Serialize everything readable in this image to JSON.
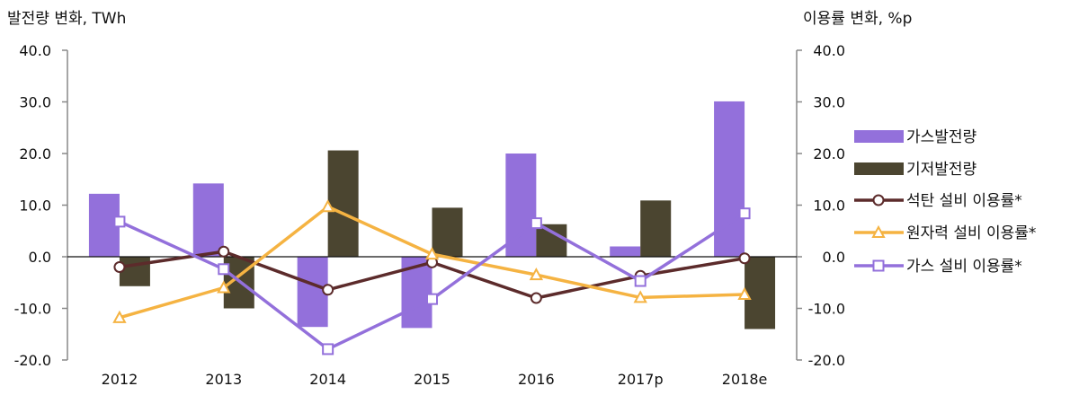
{
  "chart_data": {
    "type": "bar",
    "categories": [
      "2012",
      "2013",
      "2014",
      "2015",
      "2016",
      "2017p",
      "2018e"
    ],
    "ylabel_left": "발전량 변화, TWh",
    "ylabel_right": "이용률 변화, %p",
    "ylim": [
      -20,
      40
    ],
    "y2lim": [
      -20,
      40
    ],
    "yticks": [
      "40.0",
      "30.0",
      "20.0",
      "10.0",
      "0.0",
      "-10.0",
      "-20.0"
    ],
    "y2ticks": [
      "40.0",
      "30.0",
      "20.0",
      "10.0",
      "0.0",
      "-10.0",
      "-20.0"
    ],
    "grid": false,
    "legend_position": "right",
    "series": [
      {
        "name": "가스발전량",
        "kind": "bar",
        "axis": "left",
        "color": "#9370db",
        "values": [
          12.2,
          14.2,
          -13.6,
          -13.8,
          20.0,
          2.0,
          30.1
        ]
      },
      {
        "name": "기저발전량",
        "kind": "bar",
        "axis": "left",
        "color": "#4b4530",
        "values": [
          -5.7,
          -10.0,
          20.6,
          9.5,
          6.3,
          10.9,
          -14.0
        ]
      },
      {
        "name": "석탄 설비 이용률*",
        "kind": "line",
        "axis": "right",
        "color": "#5c2b2b",
        "marker": "circle",
        "values": [
          -2.0,
          1.0,
          -6.4,
          -1.1,
          -8.0,
          -3.7,
          -0.3
        ]
      },
      {
        "name": "원자력 설비 이용률*",
        "kind": "line",
        "axis": "right",
        "color": "#f5b342",
        "marker": "triangle",
        "values": [
          -11.8,
          -6.0,
          9.7,
          0.5,
          -3.5,
          -7.9,
          -7.3
        ]
      },
      {
        "name": "가스 설비 이용률*",
        "kind": "line",
        "axis": "right",
        "color": "#9370db",
        "marker": "square",
        "values": [
          6.8,
          -2.4,
          -17.9,
          -8.2,
          6.5,
          -4.7,
          8.4
        ]
      }
    ]
  }
}
